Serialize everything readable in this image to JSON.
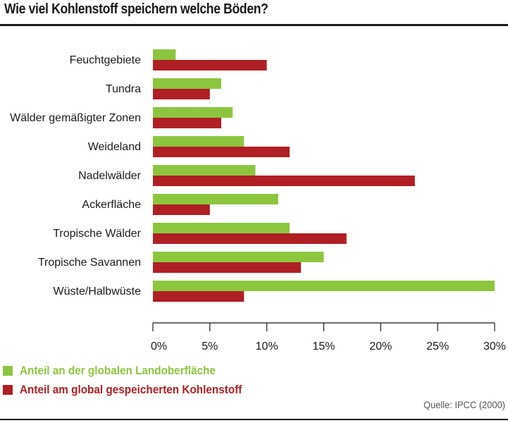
{
  "title": "Wie viel Kohlenstoff speichern welche Böden?",
  "source": "Quelle: IPCC (2000)",
  "legend": {
    "items": [
      {
        "label": "Anteil an der globalen Landoberfläche",
        "color": "#8cc63f"
      },
      {
        "label": "Anteil am global gespeicherten Kohlenstoff",
        "color": "#b01f24"
      }
    ]
  },
  "chart_data": {
    "type": "bar",
    "orientation": "horizontal",
    "categories": [
      "Feuchtgebiete",
      "Tundra",
      "Wälder gemäßigter Zonen",
      "Weideland",
      "Nadelwälder",
      "Ackerfläche",
      "Tropische Wälder",
      "Tropische Savannen",
      "Wüste/Halbwüste"
    ],
    "series": [
      {
        "name": "Anteil an der globalen Landoberfläche",
        "color": "#8cc63f",
        "values": [
          2,
          6,
          7,
          8,
          9,
          11,
          12,
          15,
          30
        ]
      },
      {
        "name": "Anteil am global gespeicherten Kohlenstoff",
        "color": "#b01f24",
        "values": [
          10,
          5,
          6,
          12,
          23,
          5,
          17,
          13,
          8
        ]
      }
    ],
    "xlim": [
      0,
      30
    ],
    "xticks": [
      "0%",
      "5%",
      "10%",
      "15%",
      "20%",
      "25%",
      "30%"
    ],
    "xlabel": "",
    "ylabel": "",
    "grid": false,
    "legend_position": "bottom-left"
  }
}
